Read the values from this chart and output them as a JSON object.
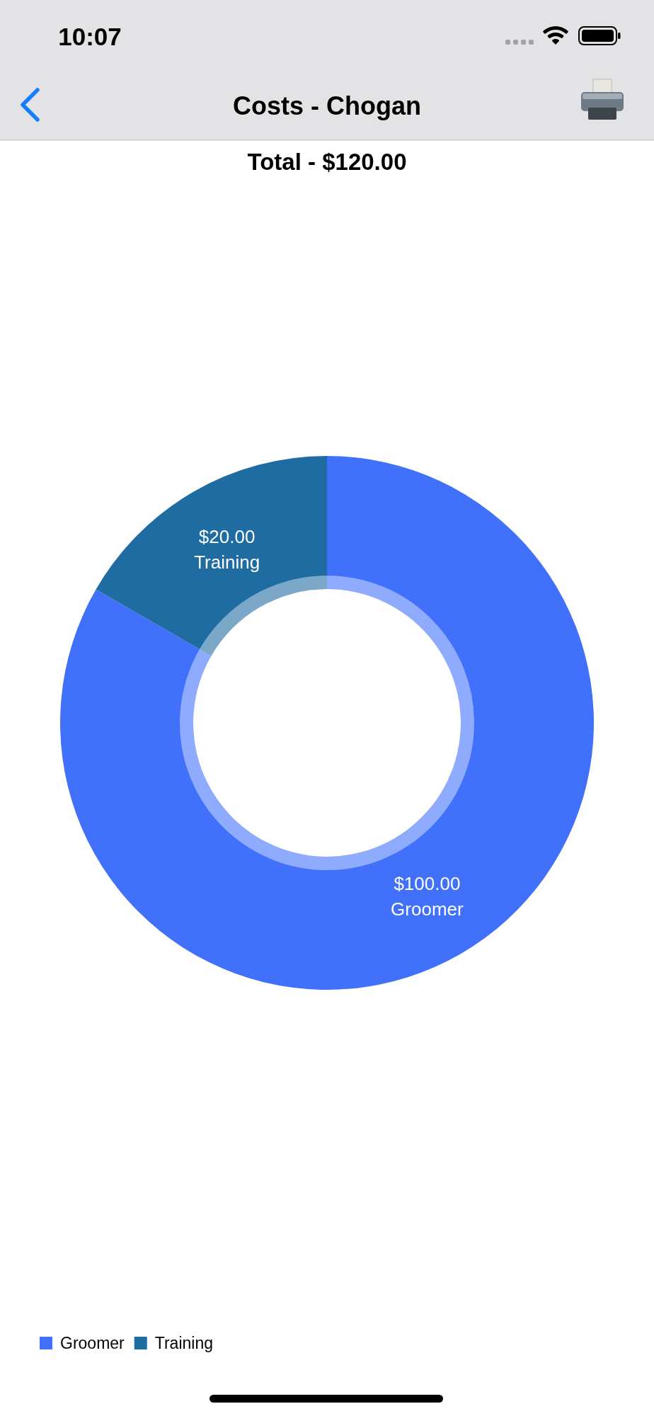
{
  "chart_data": {
    "type": "donut",
    "title": "Costs - Chogan",
    "subtitle": "Total - $120.00",
    "annotations": [
      "10:07"
    ],
    "categories": [
      "Groomer",
      "Training"
    ],
    "values": [
      100,
      20
    ],
    "colors": [
      "#4170fb",
      "#1f6ca3"
    ],
    "value_labels": [
      "$100.00",
      "$20.00"
    ],
    "legend": "bottom left"
  }
}
